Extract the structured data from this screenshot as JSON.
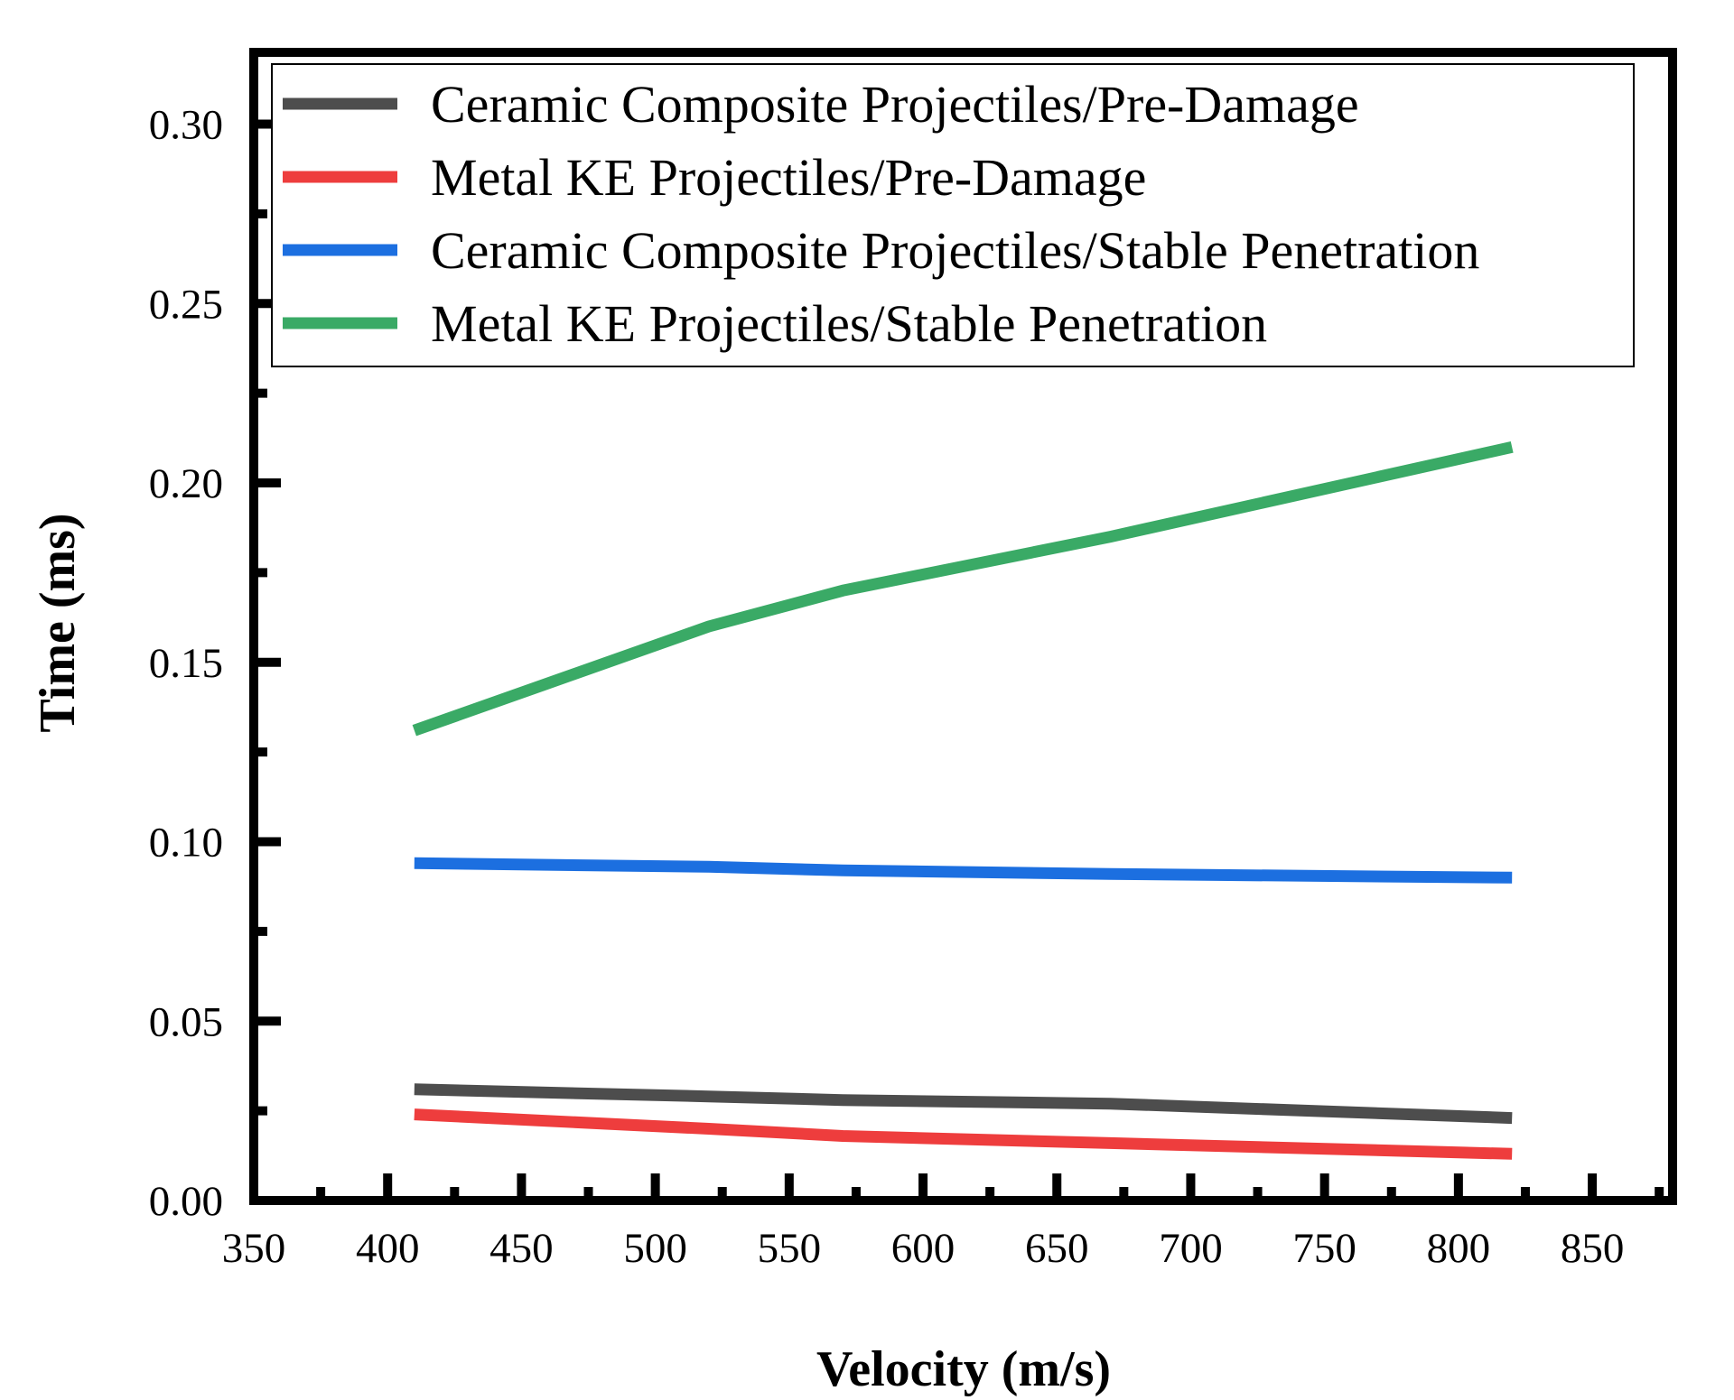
{
  "chart_data": {
    "type": "line",
    "title": "",
    "xlabel": "Velocity (m/s)",
    "ylabel": "Time (ms)",
    "xlim": [
      350,
      880
    ],
    "ylim": [
      0.0,
      0.32
    ],
    "x_ticks": [
      350,
      400,
      450,
      500,
      550,
      600,
      650,
      700,
      750,
      800,
      850
    ],
    "x_tick_labels": [
      "350",
      "400",
      "450",
      "500",
      "550",
      "600",
      "650",
      "700",
      "750",
      "800",
      "850"
    ],
    "y_ticks": [
      0.0,
      0.05,
      0.1,
      0.15,
      0.2,
      0.25,
      0.3
    ],
    "y_tick_labels": [
      "0.00",
      "0.05",
      "0.10",
      "0.15",
      "0.20",
      "0.25",
      "0.30"
    ],
    "grid": false,
    "legend_position": "top-right",
    "series": [
      {
        "name": "Ceramic Composite Projectiles/Pre-Damage",
        "color": "#4d4d4d",
        "x": [
          410,
          520,
          570,
          670,
          820
        ],
        "values": [
          0.031,
          0.029,
          0.028,
          0.027,
          0.023
        ]
      },
      {
        "name": "Metal KE Projectiles/Pre-Damage",
        "color": "#ee3d3d",
        "x": [
          410,
          520,
          570,
          670,
          820
        ],
        "values": [
          0.024,
          0.02,
          0.018,
          0.016,
          0.013
        ]
      },
      {
        "name": "Ceramic Composite Projectiles/Stable Penetration",
        "color": "#1c6fe0",
        "x": [
          410,
          520,
          570,
          670,
          820
        ],
        "values": [
          0.094,
          0.093,
          0.092,
          0.091,
          0.09
        ]
      },
      {
        "name": "Metal KE Projectiles/Stable Penetration",
        "color": "#3aaa66",
        "x": [
          410,
          520,
          570,
          670,
          820
        ],
        "values": [
          0.131,
          0.16,
          0.17,
          0.185,
          0.21
        ]
      }
    ]
  }
}
